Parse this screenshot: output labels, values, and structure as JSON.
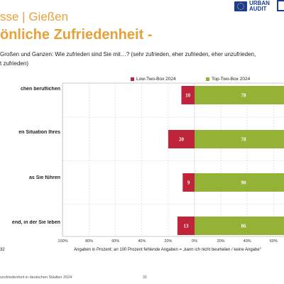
{
  "header": {
    "title_top": "sse | Gießen",
    "title_main": "önliche Zufriedenheit -",
    "logo_text": [
      "URBAN",
      "AUDIT"
    ]
  },
  "question": {
    "line1": " Großen und Ganzen: Wie zufrieden sind Sie mit…? (sehr zufrieden, eher zufrieden, eher unzufrieden,",
    "line2": "t zufrieden)"
  },
  "footnotes": {
    "left": "32",
    "right": "Angaben in Prozent; an 100 Prozent fehlende Angaben = „kann ich nicht beurteilen / keine Angabe“"
  },
  "footer": {
    "text": "szufriedenheit in deutschen Städten 2024",
    "page": "31"
  },
  "chart_data": {
    "type": "bar",
    "orientation": "horizontal-diverging",
    "categories": [
      "chen beruflichen",
      "en Situation Ihres",
      "as Sie führen",
      "end, in der Sie leben"
    ],
    "series": [
      {
        "name": "Low-Two-Box 2024",
        "color": "#c0243a",
        "direction": "left",
        "values": [
          10,
          20,
          9,
          13
        ]
      },
      {
        "name": "Top-Two-Box 2024",
        "color": "#93b236",
        "direction": "right",
        "values": [
          78,
          78,
          90,
          86
        ]
      }
    ],
    "x_tick_labels": [
      "100%",
      "80%",
      "60%",
      "40%",
      "20%",
      "0%",
      "20%",
      "40%",
      "60%"
    ],
    "xlim": [
      -100,
      100
    ],
    "grid": true,
    "legend_position": "top"
  }
}
